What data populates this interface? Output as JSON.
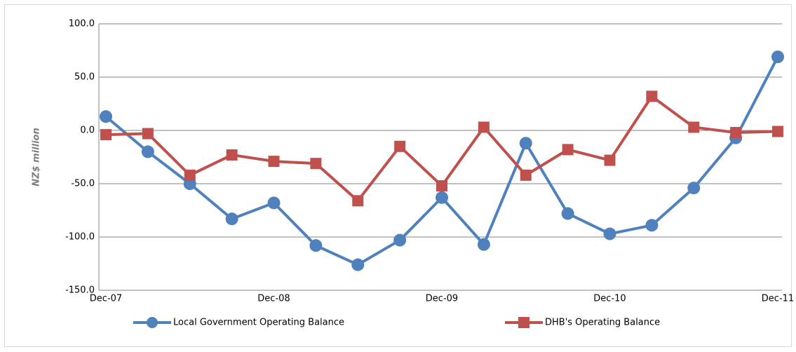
{
  "chart_data": {
    "type": "line",
    "y_label": "NZ$ million",
    "categories": [
      "Dec-07",
      null,
      null,
      null,
      "Dec-08",
      null,
      null,
      null,
      "Dec-09",
      null,
      null,
      null,
      "Dec-10",
      null,
      null,
      null,
      "Dec-11"
    ],
    "series": [
      {
        "name": "Local Government Operating Balance",
        "color": "#4f81bd",
        "marker": "circle",
        "values": [
          13,
          -20,
          -50,
          -83,
          -68,
          -108,
          -126,
          -103,
          -63,
          -107,
          -12,
          -78,
          -97,
          -89,
          -54,
          -7,
          69
        ]
      },
      {
        "name": "DHB's Operating Balance",
        "color": "#c0504d",
        "marker": "square",
        "values": [
          -4,
          -3,
          -42,
          -23,
          -29,
          -31,
          -66,
          -15,
          -52,
          3,
          -42,
          -18,
          -28,
          32,
          3,
          -2,
          -1
        ]
      }
    ],
    "ylim": [
      -150,
      100
    ],
    "yticks": [
      {
        "value": -150,
        "label": "-150.0"
      },
      {
        "value": -100,
        "label": "-100.0"
      },
      {
        "value": -50,
        "label": "-50.0"
      },
      {
        "value": 0,
        "label": "0.0"
      },
      {
        "value": 50,
        "label": "50.0"
      },
      {
        "value": 100,
        "label": "100.0"
      }
    ],
    "grid": true
  }
}
